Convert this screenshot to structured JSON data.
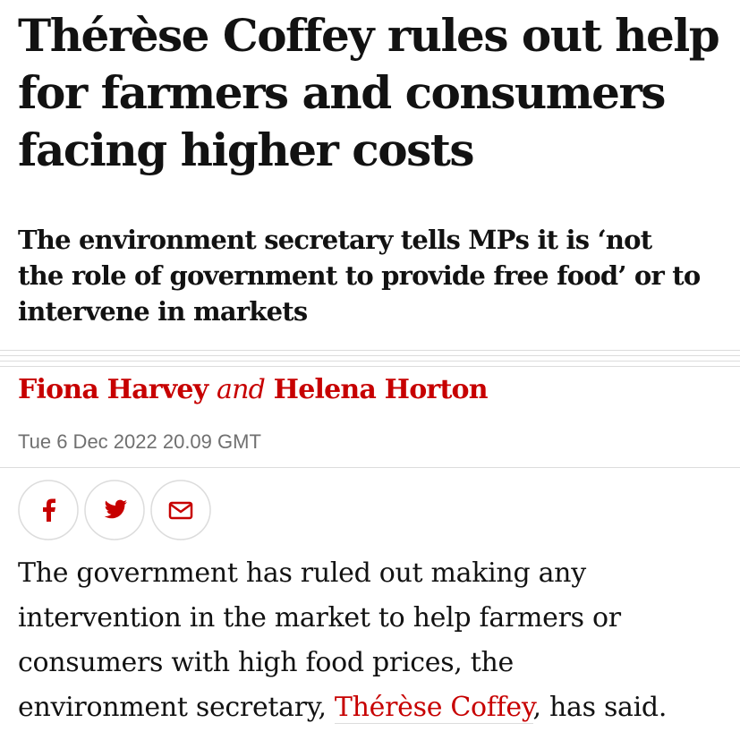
{
  "article": {
    "headline": {
      "lines": [
        "Thérèse Coffey rules out help",
        "for farmers and consumers",
        "facing higher costs"
      ]
    },
    "standfirst": {
      "lines": [
        "The environment secretary tells MPs it is ‘not",
        "the role of government to provide free food’ or to",
        "intervene in markets"
      ]
    },
    "byline": {
      "author1": "Fiona Harvey",
      "conjunction": "and",
      "author2": "Helena Horton"
    },
    "date": "Tue 6 Dec 2022 20.09 GMT",
    "body": {
      "lines": [
        "The government has ruled out making any",
        "intervention in the market to help farmers or",
        "consumers with high food prices, the"
      ],
      "last_before": "environment secretary, ",
      "link": "Thérèse Coffey",
      "last_after": ", has said."
    }
  }
}
